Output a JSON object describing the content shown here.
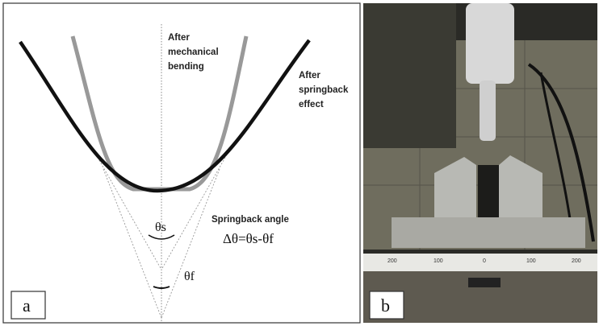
{
  "panel_a": {
    "label": "a",
    "annotations": {
      "bending": [
        "After",
        "mechanical",
        "bending"
      ],
      "springback": [
        "After",
        "springback",
        "effect"
      ],
      "theta_s": "θs",
      "theta_f": "θf",
      "springback_angle": "Springback angle",
      "formula": "Δθ=θs-θf"
    }
  },
  "panel_b": {
    "label": "b",
    "ruler": [
      "200",
      "100",
      "0",
      "100",
      "200"
    ]
  }
}
